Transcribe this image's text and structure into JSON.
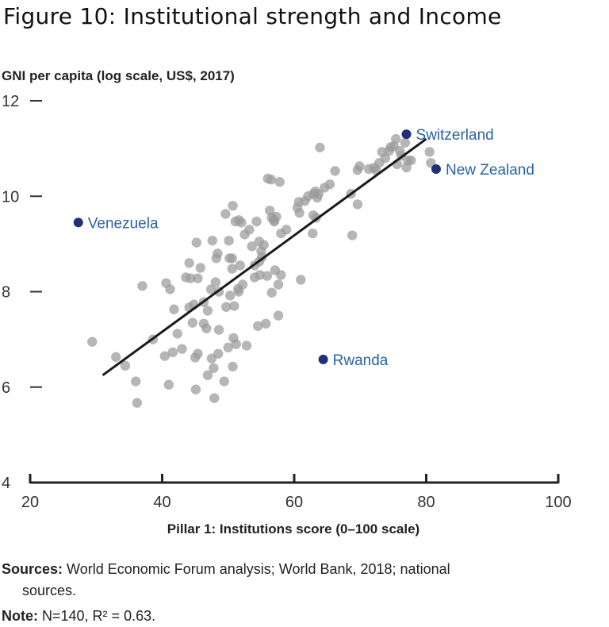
{
  "figure": {
    "title": "Figure 10: Institutional strength and Income",
    "sources_label": "Sources:",
    "sources_text": "World Economic Forum analysis; World Bank, 2018; national",
    "sources_text_cont": "sources.",
    "note_label": "Note:",
    "note_text": "N=140, R² = 0.63."
  },
  "colors": {
    "dot": "#9a9a9a",
    "highlight": "#1f3078",
    "highlight_label": "#2a63a3",
    "trend": "#1a1a1a"
  },
  "chart_data": {
    "type": "scatter",
    "xlabel": "Pillar 1: Institutions score (0–100 scale)",
    "ylabel": "GNI per capita (log scale, US$, 2017)",
    "xlim": [
      20,
      100
    ],
    "ylim": [
      4,
      12
    ],
    "x_ticks": [
      20,
      40,
      60,
      80,
      100
    ],
    "y_ticks": [
      4,
      6,
      8,
      10,
      12
    ],
    "trendline": {
      "x": [
        31,
        80
      ],
      "y": [
        6.25,
        11.2
      ]
    },
    "highlighted": [
      {
        "name": "Switzerland",
        "x": 77.0,
        "y": 11.3
      },
      {
        "name": "New Zealand",
        "x": 81.5,
        "y": 10.57
      },
      {
        "name": "Venezuela",
        "x": 27.3,
        "y": 9.45
      },
      {
        "name": "Rwanda",
        "x": 64.4,
        "y": 6.58
      }
    ],
    "points": [
      [
        29.4,
        6.95
      ],
      [
        33.0,
        6.63
      ],
      [
        34.4,
        6.45
      ],
      [
        36.0,
        6.12
      ],
      [
        36.2,
        5.67
      ],
      [
        37.0,
        8.12
      ],
      [
        38.6,
        7.0
      ],
      [
        40.4,
        6.65
      ],
      [
        40.6,
        8.18
      ],
      [
        41.0,
        6.05
      ],
      [
        41.2,
        8.05
      ],
      [
        41.6,
        6.73
      ],
      [
        41.8,
        7.63
      ],
      [
        42.3,
        7.12
      ],
      [
        43.0,
        6.8
      ],
      [
        43.6,
        8.3
      ],
      [
        44.1,
        7.67
      ],
      [
        44.1,
        8.6
      ],
      [
        44.3,
        8.28
      ],
      [
        44.6,
        7.35
      ],
      [
        44.8,
        7.73
      ],
      [
        45.0,
        6.62
      ],
      [
        45.1,
        5.95
      ],
      [
        45.2,
        9.03
      ],
      [
        45.4,
        8.28
      ],
      [
        45.4,
        6.7
      ],
      [
        45.8,
        8.5
      ],
      [
        46.3,
        7.78
      ],
      [
        46.3,
        7.33
      ],
      [
        46.7,
        7.23
      ],
      [
        46.9,
        7.6
      ],
      [
        46.9,
        6.25
      ],
      [
        47.4,
        8.05
      ],
      [
        47.5,
        6.6
      ],
      [
        47.6,
        9.07
      ],
      [
        47.8,
        6.4
      ],
      [
        47.9,
        5.77
      ],
      [
        48.1,
        8.2
      ],
      [
        48.2,
        8.7
      ],
      [
        48.4,
        8.8
      ],
      [
        48.5,
        6.7
      ],
      [
        48.6,
        8.0
      ],
      [
        48.6,
        7.2
      ],
      [
        49.4,
        6.12
      ],
      [
        49.6,
        9.63
      ],
      [
        49.7,
        7.68
      ],
      [
        50.0,
        6.83
      ],
      [
        50.1,
        9.07
      ],
      [
        50.2,
        8.7
      ],
      [
        50.3,
        7.92
      ],
      [
        50.6,
        8.7
      ],
      [
        50.6,
        8.48
      ],
      [
        50.7,
        6.43
      ],
      [
        50.7,
        9.8
      ],
      [
        50.8,
        7.03
      ],
      [
        50.9,
        7.7
      ],
      [
        51.1,
        9.47
      ],
      [
        51.2,
        6.9
      ],
      [
        51.5,
        8.06
      ],
      [
        51.6,
        8.0
      ],
      [
        51.6,
        9.5
      ],
      [
        51.8,
        8.55
      ],
      [
        52.0,
        9.45
      ],
      [
        52.2,
        8.15
      ],
      [
        52.5,
        9.2
      ],
      [
        52.8,
        6.87
      ],
      [
        53.2,
        9.3
      ],
      [
        53.6,
        8.95
      ],
      [
        54.0,
        8.3
      ],
      [
        54.0,
        8.55
      ],
      [
        54.3,
        9.47
      ],
      [
        54.5,
        7.28
      ],
      [
        54.7,
        9.05
      ],
      [
        54.7,
        8.63
      ],
      [
        54.8,
        8.35
      ],
      [
        55.0,
        8.85
      ],
      [
        55.1,
        8.72
      ],
      [
        55.4,
        8.98
      ],
      [
        55.7,
        7.33
      ],
      [
        55.9,
        8.33
      ],
      [
        56.0,
        10.37
      ],
      [
        56.3,
        9.7
      ],
      [
        56.5,
        10.35
      ],
      [
        56.6,
        9.55
      ],
      [
        56.6,
        7.98
      ],
      [
        56.9,
        9.5
      ],
      [
        57.0,
        9.47
      ],
      [
        57.1,
        8.45
      ],
      [
        57.3,
        9.57
      ],
      [
        57.6,
        7.5
      ],
      [
        57.6,
        8.15
      ],
      [
        57.8,
        10.3
      ],
      [
        58.0,
        9.22
      ],
      [
        58.0,
        8.35
      ],
      [
        58.8,
        9.3
      ],
      [
        60.5,
        9.76
      ],
      [
        60.7,
        9.88
      ],
      [
        60.8,
        9.65
      ],
      [
        61.0,
        8.25
      ],
      [
        61.6,
        9.9
      ],
      [
        62.1,
        10.0
      ],
      [
        62.8,
        9.22
      ],
      [
        62.9,
        9.6
      ],
      [
        62.9,
        10.05
      ],
      [
        63.2,
        10.1
      ],
      [
        63.3,
        9.55
      ],
      [
        63.5,
        9.97
      ],
      [
        63.7,
        10.05
      ],
      [
        63.9,
        11.02
      ],
      [
        64.6,
        10.18
      ],
      [
        65.4,
        10.25
      ],
      [
        66.2,
        10.53
      ],
      [
        68.6,
        10.05
      ],
      [
        68.8,
        9.18
      ],
      [
        69.6,
        9.83
      ],
      [
        69.6,
        10.55
      ],
      [
        69.9,
        10.63
      ],
      [
        71.3,
        10.57
      ],
      [
        72.1,
        10.6
      ],
      [
        72.4,
        10.55
      ],
      [
        72.9,
        10.7
      ],
      [
        73.3,
        10.93
      ],
      [
        73.8,
        10.8
      ],
      [
        74.4,
        10.95
      ],
      [
        74.6,
        11.03
      ],
      [
        75.1,
        11.05
      ],
      [
        75.4,
        11.2
      ],
      [
        75.6,
        10.67
      ],
      [
        76.0,
        10.95
      ],
      [
        76.2,
        10.85
      ],
      [
        76.8,
        11.12
      ],
      [
        77.0,
        10.6
      ],
      [
        77.2,
        10.75
      ],
      [
        77.7,
        10.75
      ],
      [
        80.5,
        10.93
      ],
      [
        80.7,
        10.7
      ]
    ]
  }
}
